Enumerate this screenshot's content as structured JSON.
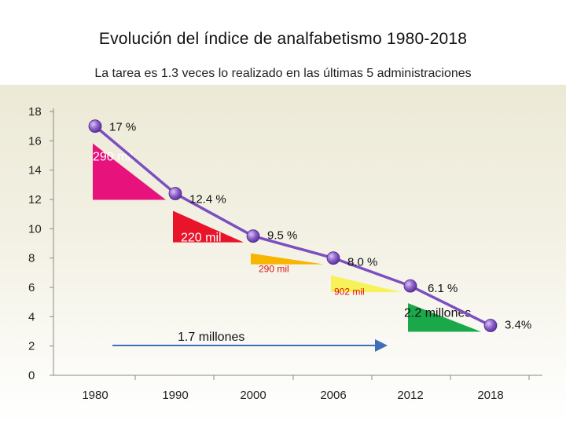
{
  "title": "Evolución del índice de analfabetismo 1980-2018",
  "subtitle": "La tarea es 1.3 veces lo realizado en las últimas 5 administraciones",
  "chart_data": {
    "type": "line",
    "categories": [
      "1980",
      "1990",
      "2000",
      "2006",
      "2012",
      "2018"
    ],
    "values": [
      17,
      12.4,
      9.5,
      8.0,
      6.1,
      3.4
    ],
    "point_labels": [
      "17 %",
      "12.4 %",
      "9.5 %",
      "8.0 %",
      "6.1 %",
      "3.4%"
    ],
    "ylim": [
      0,
      18
    ],
    "yticks": [
      "0",
      "2",
      "4",
      "6",
      "8",
      "10",
      "12",
      "14",
      "16",
      "18"
    ],
    "grid": false,
    "line_color": "#7b4fc0",
    "marker_color": "#8a5cc8",
    "reductions": [
      {
        "from": "1980",
        "to": "1990",
        "label": "290 mil",
        "color": "#e8127c",
        "label_color": "#ffffff"
      },
      {
        "from": "1990",
        "to": "2000",
        "label": "220 mil",
        "color": "#e8152a",
        "label_color": "#ffffff"
      },
      {
        "from": "2000",
        "to": "2006",
        "label": "290 mil",
        "color": "#f7b500",
        "label_color": "#e01010"
      },
      {
        "from": "2006",
        "to": "2012",
        "label": "902 mil",
        "color": "#f8f25a",
        "label_color": "#e01010"
      },
      {
        "from": "2012",
        "to": "2018",
        "label": "2.2 millones",
        "color": "#1aa84a",
        "label_color": "#111111"
      }
    ],
    "annotations": [
      {
        "text": "1.7 millones",
        "span": [
          "1980",
          "2006"
        ]
      }
    ],
    "arrow_color": "#3e6fb8"
  }
}
